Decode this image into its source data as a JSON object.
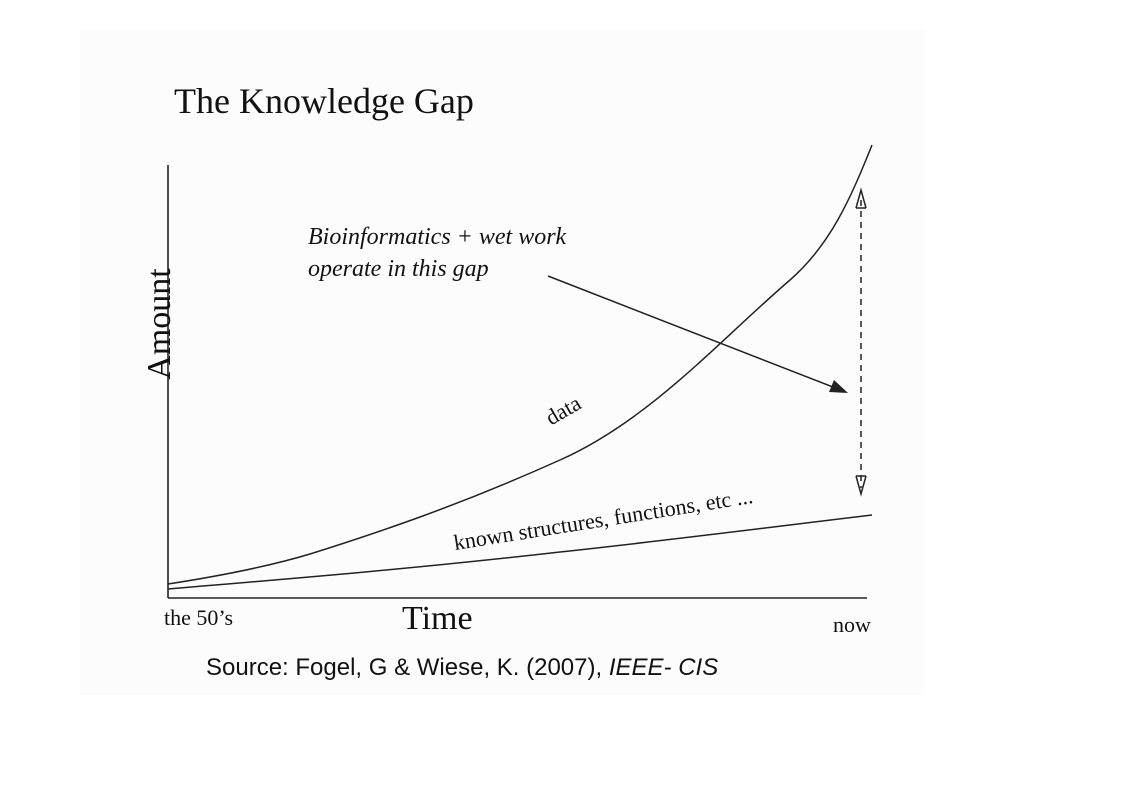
{
  "title": "The Knowledge Gap",
  "annotation": {
    "line1": "Bioinformatics  + wet work",
    "line2": "operate in this gap"
  },
  "axes": {
    "y_label": "Amount",
    "x_label": "Time",
    "x_start": "the 50’s",
    "x_end": "now"
  },
  "curves": {
    "data_label": "data",
    "known_label": "known structures, functions, etc ..."
  },
  "source": {
    "prefix": "Source: Fogel, G & Wiese, K. (2007), ",
    "journal": "IEEE- CIS"
  }
}
